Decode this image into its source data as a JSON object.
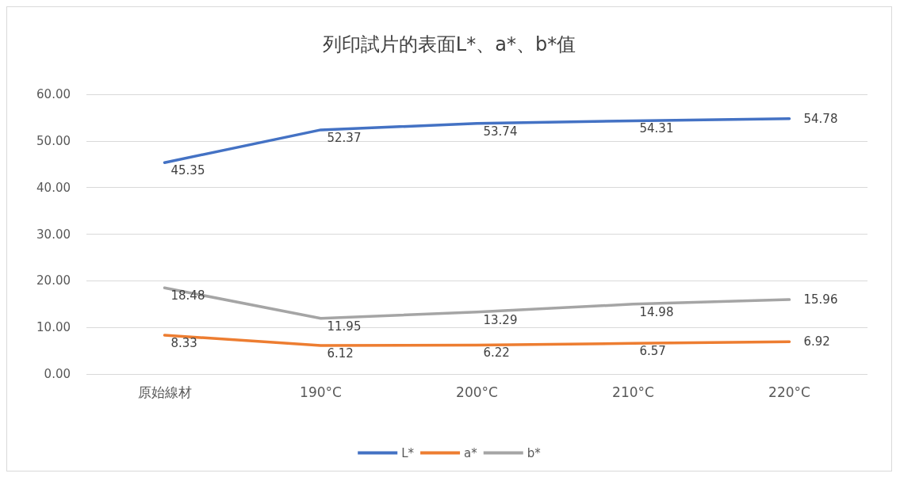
{
  "chart_data": {
    "type": "line",
    "title": "列印試片的表面L*、a*、b*值",
    "categories": [
      "原始線材",
      "190°C",
      "200°C",
      "210°C",
      "220°C"
    ],
    "series": [
      {
        "name": "L*",
        "color": "#4472c4",
        "values": [
          45.35,
          52.37,
          53.74,
          54.31,
          54.78
        ]
      },
      {
        "name": "a*",
        "color": "#ed7d31",
        "values": [
          8.33,
          6.12,
          6.22,
          6.57,
          6.92
        ]
      },
      {
        "name": "b*",
        "color": "#a5a5a5",
        "values": [
          18.48,
          11.95,
          13.29,
          14.98,
          15.96
        ]
      }
    ],
    "ylim": [
      0,
      60
    ],
    "yticks": [
      {
        "value": 0,
        "label": "0.00"
      },
      {
        "value": 10,
        "label": "10.00"
      },
      {
        "value": 20,
        "label": "20.00"
      },
      {
        "value": 30,
        "label": "30.00"
      },
      {
        "value": 40,
        "label": "40.00"
      },
      {
        "value": 50,
        "label": "50.00"
      },
      {
        "value": 60,
        "label": "60.00"
      }
    ],
    "grid": "y",
    "legend": "bottom",
    "data_labels": true,
    "marker": "none",
    "line_style": "solid"
  }
}
